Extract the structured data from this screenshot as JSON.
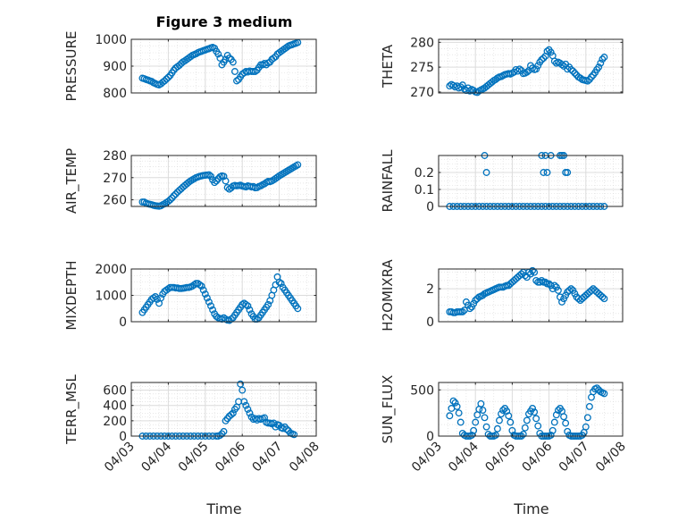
{
  "figure": {
    "title": "Figure 3 medium",
    "xlabel": "Time",
    "marker_color": "#0072BD",
    "x_tick_labels": [
      "04/03",
      "04/04",
      "04/05",
      "04/06",
      "04/07",
      "04/08"
    ]
  },
  "chart_data": [
    {
      "type": "scatter",
      "ylabel": "PRESSURE",
      "ylim": [
        800,
        1000
      ],
      "yticks": [
        800,
        900,
        1000
      ],
      "ytick_labels": [
        "800",
        "900",
        "1000"
      ],
      "grid": true,
      "x": [
        3.3,
        3.35,
        3.4,
        3.45,
        3.5,
        3.55,
        3.6,
        3.65,
        3.7,
        3.75,
        3.8,
        3.85,
        3.9,
        3.95,
        4.0,
        4.05,
        4.1,
        4.15,
        4.2,
        4.25,
        4.3,
        4.35,
        4.4,
        4.45,
        4.5,
        4.55,
        4.6,
        4.65,
        4.7,
        4.75,
        4.8,
        4.85,
        4.9,
        4.95,
        5.0,
        5.05,
        5.1,
        5.15,
        5.2,
        5.25,
        5.3,
        5.35,
        5.4,
        5.45,
        5.5,
        5.55,
        5.6,
        5.65,
        5.7,
        5.75,
        5.8,
        5.85,
        5.9,
        5.95,
        6.0,
        6.05,
        6.1,
        6.15,
        6.2,
        6.25,
        6.3,
        6.35,
        6.4,
        6.45,
        6.5,
        6.55,
        6.6,
        6.65,
        6.7,
        6.75,
        6.8,
        6.85,
        6.9,
        6.95,
        7.0,
        7.05,
        7.1,
        7.15,
        7.2,
        7.25,
        7.3,
        7.35,
        7.4,
        7.45,
        7.5
      ],
      "y": [
        855,
        853,
        850,
        848,
        845,
        843,
        838,
        835,
        832,
        830,
        834,
        840,
        845,
        852,
        858,
        865,
        875,
        885,
        893,
        898,
        903,
        910,
        916,
        920,
        925,
        930,
        935,
        940,
        943,
        946,
        950,
        953,
        955,
        958,
        960,
        963,
        965,
        968,
        970,
        967,
        955,
        945,
        930,
        905,
        915,
        925,
        940,
        930,
        925,
        915,
        880,
        845,
        850,
        860,
        870,
        875,
        880,
        878,
        882,
        880,
        880,
        880,
        885,
        895,
        905,
        905,
        910,
        905,
        912,
        915,
        925,
        930,
        935,
        945,
        950,
        955,
        960,
        965,
        970,
        975,
        978,
        980,
        983,
        985,
        988
      ]
    },
    {
      "type": "scatter",
      "ylabel": "THETA",
      "ylim": [
        269.8,
        280.6
      ],
      "yticks": [
        270,
        275,
        280
      ],
      "ytick_labels": [
        "270",
        "275",
        "280"
      ],
      "grid": true,
      "x": [
        3.3,
        3.35,
        3.4,
        3.45,
        3.5,
        3.55,
        3.6,
        3.65,
        3.7,
        3.75,
        3.8,
        3.85,
        3.9,
        3.95,
        4.0,
        4.05,
        4.1,
        4.15,
        4.2,
        4.25,
        4.3,
        4.35,
        4.4,
        4.45,
        4.5,
        4.55,
        4.6,
        4.65,
        4.7,
        4.75,
        4.8,
        4.85,
        4.9,
        4.95,
        5.0,
        5.05,
        5.1,
        5.15,
        5.2,
        5.25,
        5.3,
        5.35,
        5.4,
        5.45,
        5.5,
        5.55,
        5.6,
        5.65,
        5.7,
        5.75,
        5.8,
        5.85,
        5.9,
        5.95,
        6.0,
        6.05,
        6.1,
        6.15,
        6.2,
        6.25,
        6.3,
        6.35,
        6.4,
        6.45,
        6.5,
        6.55,
        6.6,
        6.65,
        6.7,
        6.75,
        6.8,
        6.85,
        6.9,
        6.95,
        7.0,
        7.05,
        7.1,
        7.15,
        7.2,
        7.25,
        7.3,
        7.35,
        7.4,
        7.45,
        7.5
      ],
      "y": [
        271.2,
        271.5,
        271.3,
        271.0,
        271.2,
        270.8,
        271.0,
        271.4,
        270.6,
        270.3,
        270.8,
        270.2,
        270.5,
        270.3,
        270.0,
        269.9,
        270.2,
        270.4,
        270.6,
        270.8,
        271.1,
        271.4,
        271.7,
        272.0,
        272.3,
        272.5,
        272.8,
        273.0,
        273.1,
        273.3,
        273.5,
        273.6,
        273.7,
        273.6,
        273.8,
        274.0,
        274.5,
        274.2,
        274.6,
        274.3,
        273.7,
        273.8,
        274.0,
        274.3,
        275.3,
        274.8,
        274.5,
        274.6,
        275.3,
        276.0,
        276.5,
        276.8,
        277.2,
        278.2,
        278.5,
        278.0,
        277.3,
        276.2,
        275.8,
        276.0,
        275.8,
        275.5,
        275.2,
        275.6,
        274.6,
        275.0,
        274.5,
        274.2,
        273.8,
        273.4,
        273.0,
        272.8,
        272.5,
        272.4,
        272.3,
        272.2,
        272.5,
        273.0,
        273.4,
        273.9,
        274.5,
        275.0,
        275.8,
        276.6,
        277.0
      ]
    },
    {
      "type": "scatter",
      "ylabel": "AIR_TEMP",
      "ylim": [
        257,
        280
      ],
      "yticks": [
        260,
        270,
        280
      ],
      "ytick_labels": [
        "260",
        "270",
        "280"
      ],
      "grid": true,
      "x": [
        3.3,
        3.35,
        3.4,
        3.45,
        3.5,
        3.55,
        3.6,
        3.65,
        3.7,
        3.75,
        3.8,
        3.85,
        3.9,
        3.95,
        4.0,
        4.05,
        4.1,
        4.15,
        4.2,
        4.25,
        4.3,
        4.35,
        4.4,
        4.45,
        4.5,
        4.55,
        4.6,
        4.65,
        4.7,
        4.75,
        4.8,
        4.85,
        4.9,
        4.95,
        5.0,
        5.05,
        5.1,
        5.15,
        5.2,
        5.25,
        5.3,
        5.35,
        5.4,
        5.45,
        5.5,
        5.55,
        5.6,
        5.65,
        5.7,
        5.75,
        5.8,
        5.85,
        5.9,
        5.95,
        6.0,
        6.05,
        6.1,
        6.15,
        6.2,
        6.25,
        6.3,
        6.35,
        6.4,
        6.45,
        6.5,
        6.55,
        6.6,
        6.65,
        6.7,
        6.75,
        6.8,
        6.85,
        6.9,
        6.95,
        7.0,
        7.05,
        7.1,
        7.15,
        7.2,
        7.25,
        7.3,
        7.35,
        7.4,
        7.45,
        7.5
      ],
      "y": [
        259,
        259,
        258.5,
        258.2,
        258,
        257.8,
        257.5,
        257.3,
        257.2,
        257.1,
        257.3,
        257.8,
        258.2,
        258.8,
        259.3,
        260,
        260.8,
        261.8,
        262.6,
        263.5,
        264.3,
        265.0,
        265.8,
        266.5,
        267.2,
        267.9,
        268.5,
        269.0,
        269.5,
        270.0,
        270.3,
        270.6,
        270.8,
        271.0,
        271.1,
        271.2,
        271.3,
        270.6,
        269.0,
        267.8,
        268.5,
        269.5,
        270.4,
        270.8,
        270.6,
        268.5,
        265.5,
        264.8,
        265.4,
        266.2,
        266.5,
        266.3,
        266.4,
        266.6,
        266.2,
        266.0,
        265.8,
        266.3,
        266.1,
        265.8,
        266.0,
        265.4,
        265.5,
        266.0,
        266.3,
        266.8,
        267.2,
        267.8,
        268.3,
        268.2,
        268.5,
        269.0,
        269.6,
        270.2,
        270.8,
        271.3,
        271.8,
        272.3,
        272.8,
        273.3,
        273.8,
        274.3,
        274.8,
        275.3,
        275.8
      ]
    },
    {
      "type": "scatter",
      "ylabel": "RAINFALL",
      "ylim": [
        0,
        0.3
      ],
      "yticks": [
        0,
        0.1,
        0.2
      ],
      "ytick_labels": [
        "0",
        "0.1",
        "0.2"
      ],
      "grid": true,
      "x": [
        3.3,
        3.4,
        3.5,
        3.6,
        3.7,
        3.8,
        3.9,
        4.0,
        4.1,
        4.2,
        4.3,
        4.4,
        4.5,
        4.6,
        4.7,
        4.8,
        4.9,
        5.0,
        5.1,
        5.2,
        5.3,
        5.4,
        5.5,
        5.6,
        5.7,
        5.8,
        5.9,
        6.0,
        6.1,
        6.2,
        6.3,
        6.4,
        6.5,
        6.6,
        6.7,
        6.8,
        6.9,
        7.0,
        7.1,
        7.2,
        7.3,
        7.4,
        7.5,
        4.25,
        4.3,
        5.8,
        5.85,
        5.9,
        5.95,
        6.05,
        6.3,
        6.35,
        6.4,
        6.45,
        6.5
      ],
      "y": [
        0,
        0,
        0,
        0,
        0,
        0,
        0,
        0,
        0,
        0,
        0,
        0,
        0,
        0,
        0,
        0,
        0,
        0,
        0,
        0,
        0,
        0,
        0,
        0,
        0,
        0,
        0,
        0,
        0,
        0,
        0,
        0,
        0,
        0,
        0,
        0,
        0,
        0,
        0,
        0,
        0,
        0,
        0,
        0.3,
        0.2,
        0.3,
        0.2,
        0.3,
        0.2,
        0.3,
        0.3,
        0.3,
        0.3,
        0.2,
        0.2
      ]
    },
    {
      "type": "scatter",
      "ylabel": "MIXDEPTH",
      "ylim": [
        0,
        2000
      ],
      "yticks": [
        0,
        1000,
        2000
      ],
      "ytick_labels": [
        "0",
        "1000",
        "2000"
      ],
      "grid": true,
      "x": [
        3.3,
        3.35,
        3.4,
        3.45,
        3.5,
        3.55,
        3.6,
        3.65,
        3.7,
        3.75,
        3.8,
        3.85,
        3.9,
        3.95,
        4.0,
        4.05,
        4.1,
        4.15,
        4.2,
        4.25,
        4.3,
        4.35,
        4.4,
        4.45,
        4.5,
        4.55,
        4.6,
        4.65,
        4.7,
        4.75,
        4.8,
        4.85,
        4.9,
        4.95,
        5.0,
        5.05,
        5.1,
        5.15,
        5.2,
        5.25,
        5.3,
        5.35,
        5.4,
        5.45,
        5.5,
        5.55,
        5.6,
        5.65,
        5.7,
        5.75,
        5.8,
        5.85,
        5.9,
        5.95,
        6.0,
        6.05,
        6.1,
        6.15,
        6.2,
        6.25,
        6.3,
        6.35,
        6.4,
        6.45,
        6.5,
        6.55,
        6.6,
        6.65,
        6.7,
        6.75,
        6.8,
        6.85,
        6.9,
        6.95,
        7.0,
        7.05,
        7.1,
        7.15,
        7.2,
        7.25,
        7.3,
        7.35,
        7.4,
        7.45,
        7.5
      ],
      "y": [
        350,
        450,
        550,
        650,
        750,
        850,
        900,
        950,
        850,
        700,
        900,
        1050,
        1150,
        1200,
        1250,
        1300,
        1300,
        1300,
        1280,
        1280,
        1260,
        1260,
        1270,
        1280,
        1300,
        1300,
        1320,
        1350,
        1400,
        1450,
        1450,
        1400,
        1350,
        1200,
        1050,
        900,
        750,
        600,
        450,
        300,
        200,
        150,
        120,
        100,
        150,
        100,
        60,
        50,
        100,
        150,
        250,
        350,
        450,
        550,
        650,
        700,
        650,
        600,
        450,
        300,
        200,
        100,
        100,
        150,
        250,
        350,
        450,
        550,
        650,
        800,
        1000,
        1200,
        1400,
        1700,
        1500,
        1450,
        1300,
        1200,
        1100,
        1000,
        900,
        800,
        700,
        600,
        500
      ]
    },
    {
      "type": "scatter",
      "ylabel": "H2OMIXRA",
      "ylim": [
        0,
        3.2
      ],
      "yticks": [
        0,
        2
      ],
      "ytick_labels": [
        "0",
        "2"
      ],
      "grid": true,
      "x": [
        3.3,
        3.35,
        3.4,
        3.45,
        3.5,
        3.55,
        3.6,
        3.65,
        3.7,
        3.75,
        3.8,
        3.85,
        3.9,
        3.95,
        4.0,
        4.05,
        4.1,
        4.15,
        4.2,
        4.25,
        4.3,
        4.35,
        4.4,
        4.45,
        4.5,
        4.55,
        4.6,
        4.65,
        4.7,
        4.75,
        4.8,
        4.85,
        4.9,
        4.95,
        5.0,
        5.05,
        5.1,
        5.15,
        5.2,
        5.25,
        5.3,
        5.35,
        5.4,
        5.45,
        5.5,
        5.55,
        5.6,
        5.65,
        5.7,
        5.75,
        5.8,
        5.85,
        5.9,
        5.95,
        6.0,
        6.05,
        6.1,
        6.15,
        6.2,
        6.25,
        6.3,
        6.35,
        6.4,
        6.45,
        6.5,
        6.55,
        6.6,
        6.65,
        6.7,
        6.75,
        6.8,
        6.85,
        6.9,
        6.95,
        7.0,
        7.05,
        7.1,
        7.15,
        7.2,
        7.25,
        7.3,
        7.35,
        7.4,
        7.45,
        7.5
      ],
      "y": [
        0.6,
        0.6,
        0.55,
        0.55,
        0.6,
        0.6,
        0.6,
        0.6,
        0.7,
        1.2,
        1.0,
        0.8,
        0.9,
        1.1,
        1.3,
        1.4,
        1.5,
        1.55,
        1.6,
        1.7,
        1.75,
        1.8,
        1.85,
        1.9,
        1.95,
        2.0,
        2.05,
        2.1,
        2.1,
        2.1,
        2.15,
        2.2,
        2.2,
        2.3,
        2.4,
        2.5,
        2.6,
        2.7,
        2.8,
        2.9,
        3.0,
        2.8,
        2.7,
        3.0,
        2.9,
        3.1,
        3.0,
        2.5,
        2.4,
        2.4,
        2.5,
        2.4,
        2.4,
        2.3,
        2.3,
        2.2,
        2.0,
        2.2,
        2.1,
        1.9,
        1.5,
        1.2,
        1.4,
        1.6,
        1.8,
        1.9,
        2.0,
        1.9,
        1.7,
        1.5,
        1.4,
        1.3,
        1.4,
        1.5,
        1.6,
        1.7,
        1.8,
        1.9,
        2.0,
        1.9,
        1.8,
        1.7,
        1.6,
        1.5,
        1.4
      ]
    },
    {
      "type": "scatter",
      "ylabel": "TERR_MSL",
      "ylim": [
        0,
        700
      ],
      "yticks": [
        0,
        200,
        400,
        600
      ],
      "ytick_labels": [
        "0",
        "200",
        "400",
        "600"
      ],
      "grid": true,
      "x": [
        3.3,
        3.4,
        3.5,
        3.6,
        3.7,
        3.8,
        3.9,
        4.0,
        4.1,
        4.2,
        4.3,
        4.4,
        4.5,
        4.6,
        4.7,
        4.8,
        4.9,
        5.0,
        5.1,
        5.2,
        5.3,
        5.35,
        5.4,
        5.45,
        5.5,
        5.55,
        5.6,
        5.65,
        5.7,
        5.75,
        5.8,
        5.85,
        5.9,
        5.95,
        6.0,
        6.05,
        6.1,
        6.15,
        6.2,
        6.25,
        6.3,
        6.35,
        6.4,
        6.45,
        6.5,
        6.55,
        6.6,
        6.65,
        6.7,
        6.75,
        6.8,
        6.85,
        6.9,
        6.95,
        7.0,
        7.05,
        7.1,
        7.15,
        7.2,
        7.25,
        7.3,
        7.35,
        7.4
      ],
      "y": [
        0,
        0,
        0,
        0,
        0,
        0,
        0,
        0,
        0,
        0,
        0,
        0,
        0,
        0,
        0,
        0,
        0,
        0,
        0,
        0,
        0,
        0,
        10,
        30,
        60,
        200,
        230,
        260,
        280,
        300,
        350,
        380,
        450,
        680,
        600,
        450,
        400,
        350,
        300,
        250,
        220,
        230,
        210,
        230,
        220,
        230,
        240,
        180,
        170,
        170,
        160,
        170,
        120,
        150,
        140,
        110,
        100,
        120,
        90,
        70,
        40,
        30,
        20
      ]
    },
    {
      "type": "scatter",
      "ylabel": "SUN_FLUX",
      "ylim": [
        0,
        580
      ],
      "yticks": [
        0,
        500
      ],
      "ytick_labels": [
        "0",
        "500"
      ],
      "grid": true,
      "x": [
        3.3,
        3.35,
        3.4,
        3.45,
        3.5,
        3.55,
        3.6,
        3.65,
        3.7,
        3.75,
        3.8,
        3.85,
        3.9,
        3.95,
        4.0,
        4.05,
        4.1,
        4.15,
        4.2,
        4.25,
        4.3,
        4.35,
        4.4,
        4.45,
        4.5,
        4.55,
        4.6,
        4.65,
        4.7,
        4.75,
        4.8,
        4.85,
        4.9,
        4.95,
        5.0,
        5.05,
        5.1,
        5.15,
        5.2,
        5.25,
        5.3,
        5.35,
        5.4,
        5.45,
        5.5,
        5.55,
        5.6,
        5.65,
        5.7,
        5.75,
        5.8,
        5.85,
        5.9,
        5.95,
        6.0,
        6.05,
        6.1,
        6.15,
        6.2,
        6.25,
        6.3,
        6.35,
        6.4,
        6.45,
        6.5,
        6.55,
        6.6,
        6.65,
        6.7,
        6.75,
        6.8,
        6.85,
        6.9,
        6.95,
        7.0,
        7.05,
        7.1,
        7.15,
        7.2,
        7.25,
        7.3,
        7.35,
        7.4,
        7.45,
        7.5
      ],
      "y": [
        220,
        300,
        380,
        360,
        320,
        250,
        150,
        30,
        10,
        0,
        0,
        0,
        10,
        60,
        150,
        230,
        290,
        350,
        280,
        200,
        100,
        20,
        0,
        0,
        0,
        10,
        80,
        170,
        240,
        280,
        300,
        270,
        220,
        150,
        60,
        10,
        0,
        0,
        0,
        0,
        20,
        90,
        170,
        240,
        270,
        300,
        260,
        190,
        110,
        30,
        0,
        0,
        0,
        0,
        0,
        10,
        60,
        150,
        230,
        280,
        300,
        270,
        210,
        140,
        50,
        10,
        0,
        0,
        0,
        0,
        0,
        0,
        10,
        40,
        100,
        200,
        320,
        420,
        480,
        510,
        520,
        500,
        480,
        470,
        460
      ]
    }
  ]
}
